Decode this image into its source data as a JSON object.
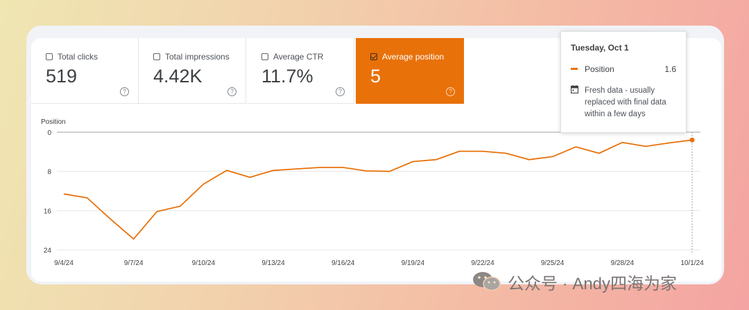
{
  "metrics": [
    {
      "label": "Total clicks",
      "value": "519",
      "checked": false
    },
    {
      "label": "Total impressions",
      "value": "4.42K",
      "checked": false
    },
    {
      "label": "Average CTR",
      "value": "11.7%",
      "checked": false
    },
    {
      "label": "Average position",
      "value": "5",
      "checked": true
    }
  ],
  "colors": {
    "accent": "#e8710a",
    "grid": "#e3e5e8",
    "text": "#3c4043"
  },
  "tooltip": {
    "date": "Tuesday, Oct 1",
    "series_name": "Position",
    "value": "1.6",
    "note": "Fresh data - usually replaced with final data within a few days"
  },
  "watermark": "公众号 · Andy四海为家",
  "chart_data": {
    "type": "line",
    "ylabel": "Position",
    "y_reversed": true,
    "ylim": [
      0,
      24
    ],
    "yticks": [
      "0",
      "8",
      "16",
      "24"
    ],
    "xtick_labels": [
      "9/4/24",
      "9/7/24",
      "9/10/24",
      "9/13/24",
      "9/16/24",
      "9/19/24",
      "9/22/24",
      "9/25/24",
      "9/28/24",
      "10/1/24"
    ],
    "x": [
      "9/4/24",
      "9/5/24",
      "9/6/24",
      "9/7/24",
      "9/8/24",
      "9/9/24",
      "9/10/24",
      "9/11/24",
      "9/12/24",
      "9/13/24",
      "9/14/24",
      "9/15/24",
      "9/16/24",
      "9/17/24",
      "9/18/24",
      "9/19/24",
      "9/20/24",
      "9/21/24",
      "9/22/24",
      "9/23/24",
      "9/24/24",
      "9/25/24",
      "9/26/24",
      "9/27/24",
      "9/28/24",
      "9/29/24",
      "9/30/24",
      "10/1/24"
    ],
    "series": [
      {
        "values": [
          12.6,
          13.4,
          17.7,
          21.8,
          16.2,
          15.1,
          10.6,
          7.8,
          9.2,
          7.8,
          7.5,
          7.2,
          7.2,
          7.9,
          8.0,
          6.0,
          5.6,
          3.9,
          3.9,
          4.3,
          5.6,
          5.0,
          3.0,
          4.3,
          2.1,
          2.9,
          2.2,
          1.6
        ]
      }
    ],
    "highlight_index": 27
  }
}
